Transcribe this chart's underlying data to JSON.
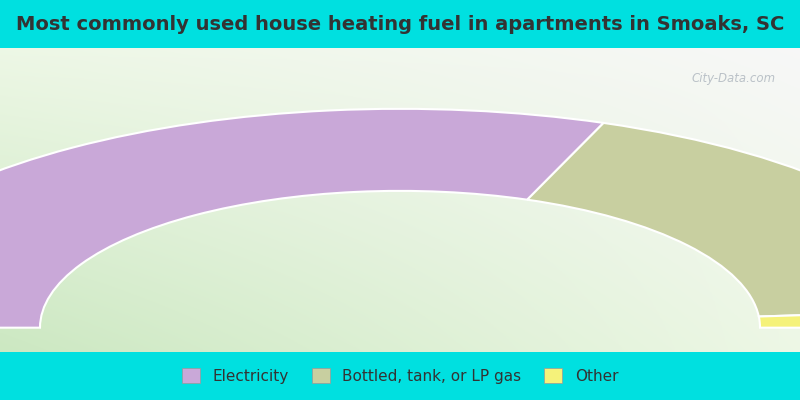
{
  "title": "Most commonly used house heating fuel in apartments in Smoaks, SC",
  "segments": [
    {
      "label": "Electricity",
      "value": 61.5,
      "color": "#c9a8d8"
    },
    {
      "label": "Bottled, tank, or LP gas",
      "value": 35.9,
      "color": "#c8cfa0"
    },
    {
      "label": "Other",
      "value": 2.6,
      "color": "#f5f27a"
    }
  ],
  "cyan_bg": "#00e0e0",
  "title_fontsize": 14,
  "legend_fontsize": 11,
  "title_color": "#333333",
  "legend_color": "#333333"
}
